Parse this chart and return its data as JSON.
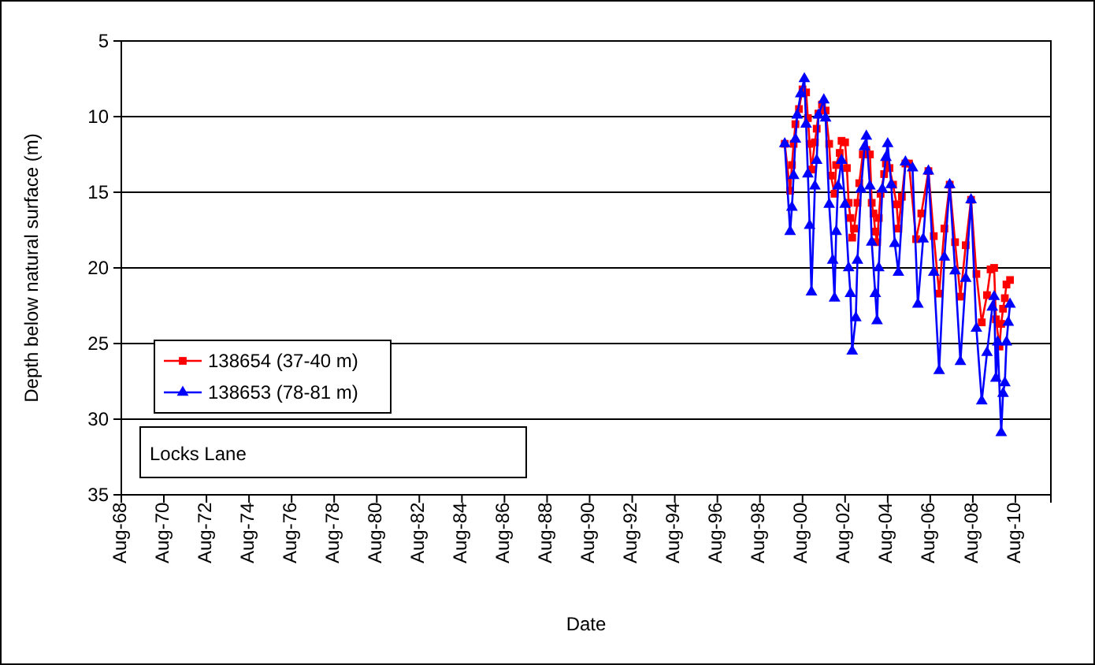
{
  "chart_data": {
    "type": "line",
    "xlabel": "Date",
    "ylabel": "Depth below natural surface (m)",
    "annotations": [
      "Locks Lane"
    ],
    "xlim": [
      "1968-08",
      "2012-04"
    ],
    "ylim": [
      35,
      5
    ],
    "yticks": [
      5,
      10,
      15,
      20,
      25,
      30,
      35
    ],
    "xticks": [
      {
        "value": "1968-08",
        "label": "Aug-68"
      },
      {
        "value": "1970-08",
        "label": "Aug-70"
      },
      {
        "value": "1972-08",
        "label": "Aug-72"
      },
      {
        "value": "1974-08",
        "label": "Aug-74"
      },
      {
        "value": "1976-08",
        "label": "Aug-76"
      },
      {
        "value": "1978-08",
        "label": "Aug-78"
      },
      {
        "value": "1980-08",
        "label": "Aug-80"
      },
      {
        "value": "1982-08",
        "label": "Aug-82"
      },
      {
        "value": "1984-08",
        "label": "Aug-84"
      },
      {
        "value": "1986-08",
        "label": "Aug-86"
      },
      {
        "value": "1988-08",
        "label": "Aug-88"
      },
      {
        "value": "1990-08",
        "label": "Aug-90"
      },
      {
        "value": "1992-08",
        "label": "Aug-92"
      },
      {
        "value": "1994-08",
        "label": "Aug-94"
      },
      {
        "value": "1996-08",
        "label": "Aug-96"
      },
      {
        "value": "1998-08",
        "label": "Aug-98"
      },
      {
        "value": "2000-08",
        "label": "Aug-00"
      },
      {
        "value": "2002-08",
        "label": "Aug-02"
      },
      {
        "value": "2004-08",
        "label": "Aug-04"
      },
      {
        "value": "2006-08",
        "label": "Aug-06"
      },
      {
        "value": "2008-08",
        "label": "Aug-08"
      },
      {
        "value": "2010-08",
        "label": "Aug-10"
      }
    ],
    "grid": "y",
    "legend": "left",
    "line_style": "solid",
    "series": [
      {
        "name": "138654 (37-40 m)",
        "color": "#ff0000",
        "marker": "square",
        "x": [
          "1999-10",
          "2000-01",
          "2000-02",
          "2000-03",
          "2000-04",
          "2000-06",
          "2000-08",
          "2000-10",
          "2000-11",
          "2000-12",
          "2001-01",
          "2001-03",
          "2001-04",
          "2001-05",
          "2001-07",
          "2001-09",
          "2001-11",
          "2001-12",
          "2002-02",
          "2002-03",
          "2002-05",
          "2002-06",
          "2002-08",
          "2002-09",
          "2002-10",
          "2002-11",
          "2002-12",
          "2003-01",
          "2003-03",
          "2003-04",
          "2003-06",
          "2003-08",
          "2003-10",
          "2003-11",
          "2003-12",
          "2004-01",
          "2004-02",
          "2004-03",
          "2004-04",
          "2004-06",
          "2004-07",
          "2004-09",
          "2004-11",
          "2005-01",
          "2005-02",
          "2005-04",
          "2005-06",
          "2005-08",
          "2005-12",
          "2006-03",
          "2006-07",
          "2006-10",
          "2007-01",
          "2007-04",
          "2007-07",
          "2007-10",
          "2008-01",
          "2008-04",
          "2008-07",
          "2008-10",
          "2009-01",
          "2009-04",
          "2009-06",
          "2009-08",
          "2009-09",
          "2009-11",
          "2009-12",
          "2010-01",
          "2010-02",
          "2010-03",
          "2010-05"
        ],
        "values": [
          11.8,
          14.9,
          13.2,
          11.8,
          10.5,
          9.5,
          8.2,
          8.4,
          10.1,
          11.8,
          13.5,
          11.7,
          10.8,
          9.8,
          9.2,
          9.6,
          11.8,
          13.9,
          15.1,
          13.2,
          12.4,
          11.6,
          11.7,
          13.4,
          15.7,
          16.7,
          18.0,
          17.4,
          15.7,
          14.4,
          12.5,
          12.2,
          12.5,
          15.7,
          16.4,
          17.6,
          18.3,
          16.7,
          15.1,
          13.8,
          13.1,
          13.4,
          14.5,
          15.8,
          17.4,
          15.3,
          13.1,
          13.1,
          18.1,
          16.4,
          13.6,
          17.9,
          21.7,
          17.4,
          14.5,
          18.3,
          21.9,
          18.5,
          15.5,
          20.4,
          23.6,
          21.8,
          20.1,
          20.0,
          23.4,
          25.2,
          23.7,
          22.7,
          22.0,
          21.1,
          20.8
        ]
      },
      {
        "name": "138653 (78-81 m)",
        "color": "#0000ff",
        "marker": "triangle",
        "x": [
          "1999-10",
          "2000-01",
          "2000-02",
          "2000-03",
          "2000-04",
          "2000-05",
          "2000-07",
          "2000-09",
          "2000-10",
          "2000-11",
          "2000-12",
          "2001-01",
          "2001-03",
          "2001-04",
          "2001-05",
          "2001-08",
          "2001-09",
          "2001-11",
          "2002-01",
          "2002-02",
          "2002-03",
          "2002-04",
          "2002-06",
          "2002-08",
          "2002-10",
          "2002-11",
          "2002-12",
          "2003-02",
          "2003-03",
          "2003-05",
          "2003-07",
          "2003-08",
          "2003-10",
          "2003-11",
          "2004-01",
          "2004-02",
          "2004-03",
          "2004-05",
          "2004-07",
          "2004-08",
          "2004-10",
          "2004-12",
          "2005-02",
          "2005-06",
          "2005-10",
          "2006-01",
          "2006-04",
          "2006-07",
          "2006-10",
          "2007-01",
          "2007-04",
          "2007-07",
          "2007-10",
          "2008-01",
          "2008-04",
          "2008-07",
          "2008-10",
          "2009-01",
          "2009-04",
          "2009-07",
          "2009-08",
          "2009-09",
          "2009-10",
          "2009-12",
          "2010-01",
          "2010-02",
          "2010-03",
          "2010-04",
          "2010-05"
        ],
        "values": [
          11.8,
          17.6,
          16.0,
          13.9,
          11.5,
          9.9,
          8.5,
          7.5,
          10.5,
          13.8,
          17.2,
          21.6,
          14.6,
          12.9,
          9.9,
          8.9,
          10.1,
          15.8,
          19.5,
          22.0,
          17.6,
          14.6,
          12.9,
          15.8,
          20.0,
          21.7,
          25.5,
          23.3,
          19.5,
          14.8,
          12.0,
          11.3,
          14.6,
          18.3,
          21.7,
          23.5,
          20.0,
          14.8,
          12.7,
          11.8,
          14.5,
          18.4,
          20.3,
          13.0,
          13.4,
          22.4,
          18.1,
          13.6,
          20.3,
          26.8,
          19.3,
          14.5,
          20.2,
          26.2,
          20.7,
          15.5,
          24.0,
          28.8,
          25.6,
          22.6,
          21.9,
          27.3,
          24.9,
          30.9,
          28.3,
          27.6,
          24.9,
          23.6,
          22.4
        ]
      }
    ]
  }
}
